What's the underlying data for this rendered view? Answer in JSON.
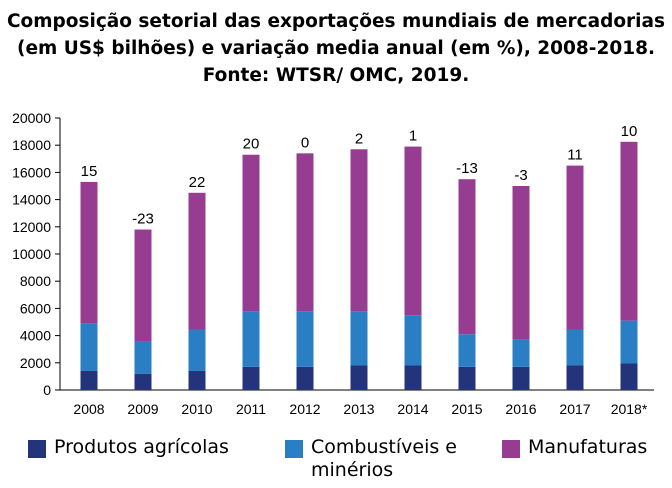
{
  "title": {
    "line1": "Composição setorial das exportações mundiais de mercadorias",
    "line2": "(em US$ bilhões) e variação media anual (em %), 2008-2018.",
    "line3": "Fonte: WTSR/ OMC, 2019."
  },
  "colors": {
    "agricolas": "#23347a",
    "combustiveis": "#2a7fc4",
    "manufaturas": "#963d91",
    "axis": "#000000"
  },
  "chart_data": {
    "type": "bar",
    "stacked": true,
    "categories": [
      "2008",
      "2009",
      "2010",
      "2011",
      "2012",
      "2013",
      "2014",
      "2015",
      "2016",
      "2017",
      "2018*"
    ],
    "series": [
      {
        "name": "Produtos agrícolas",
        "values": [
          1400,
          1200,
          1400,
          1700,
          1700,
          1800,
          1800,
          1700,
          1700,
          1800,
          1950
        ]
      },
      {
        "name": "Combustíveis e minérios",
        "values": [
          3500,
          2400,
          3050,
          4100,
          4100,
          4000,
          3700,
          2400,
          2000,
          2650,
          3150
        ]
      },
      {
        "name": "Manufaturas",
        "values": [
          10400,
          8200,
          10050,
          11500,
          11600,
          11900,
          12400,
          11400,
          11300,
          12050,
          13150
        ]
      }
    ],
    "annotations": [
      "15",
      "-23",
      "22",
      "20",
      "0",
      "2",
      "1",
      "-13",
      "-3",
      "11",
      "10"
    ],
    "ylim": [
      0,
      20000
    ],
    "yticks": [
      0,
      2000,
      4000,
      6000,
      8000,
      10000,
      12000,
      14000,
      16000,
      18000,
      20000
    ],
    "grid": false,
    "legend_position": "bottom"
  },
  "legend": {
    "items": [
      {
        "label": "Produtos agrícolas"
      },
      {
        "label": "Combustíveis e minérios"
      },
      {
        "label": "Manufaturas"
      }
    ]
  }
}
